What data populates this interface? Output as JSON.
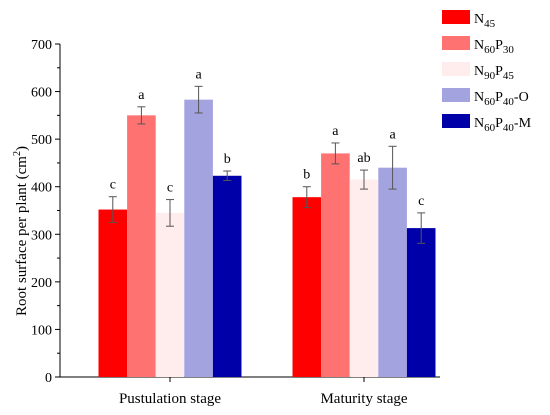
{
  "chart_data": {
    "type": "bar",
    "categories": [
      "Pustulation stage",
      "Maturity stage"
    ],
    "ylabel": "Root surface per plant (cm",
    "ylabel_sup": "2",
    "ylabel_close": ")",
    "ylim": [
      0,
      700
    ],
    "yticks": [
      0,
      100,
      200,
      300,
      400,
      500,
      600,
      700
    ],
    "grid": false,
    "legend_position": "top-right",
    "series": [
      {
        "name": "N45",
        "parts": [
          [
            "N",
            "n"
          ],
          [
            "45",
            "s"
          ]
        ],
        "color": "#ff0000",
        "values": [
          352,
          378
        ],
        "errors": [
          27,
          22
        ],
        "letters": [
          "c",
          "b"
        ]
      },
      {
        "name": "N60P30",
        "parts": [
          [
            "N",
            "n"
          ],
          [
            "60",
            "s"
          ],
          [
            "P",
            "n"
          ],
          [
            "30",
            "s"
          ]
        ],
        "color": "#ff7272",
        "values": [
          550,
          470
        ],
        "errors": [
          18,
          22
        ],
        "letters": [
          "a",
          "a"
        ]
      },
      {
        "name": "N90P45",
        "parts": [
          [
            "N",
            "n"
          ],
          [
            "90",
            "s"
          ],
          [
            "P",
            "n"
          ],
          [
            "45",
            "s"
          ]
        ],
        "color": "#ffecec",
        "values": [
          345,
          415
        ],
        "errors": [
          28,
          20
        ],
        "letters": [
          "c",
          "ab"
        ]
      },
      {
        "name": "N60P40-O",
        "parts": [
          [
            "N",
            "n"
          ],
          [
            "60",
            "s"
          ],
          [
            "P",
            "n"
          ],
          [
            "40",
            "s"
          ],
          [
            "-O",
            "n"
          ]
        ],
        "color": "#a3a3e0",
        "values": [
          583,
          440
        ],
        "errors": [
          28,
          45
        ],
        "letters": [
          "a",
          "a"
        ]
      },
      {
        "name": "N60P40-M",
        "parts": [
          [
            "N",
            "n"
          ],
          [
            "60",
            "s"
          ],
          [
            "P",
            "n"
          ],
          [
            "40",
            "s"
          ],
          [
            "-M",
            "n"
          ]
        ],
        "color": "#0000a8",
        "values": [
          423,
          313
        ],
        "errors": [
          10,
          32
        ],
        "letters": [
          "b",
          "c"
        ]
      }
    ]
  }
}
